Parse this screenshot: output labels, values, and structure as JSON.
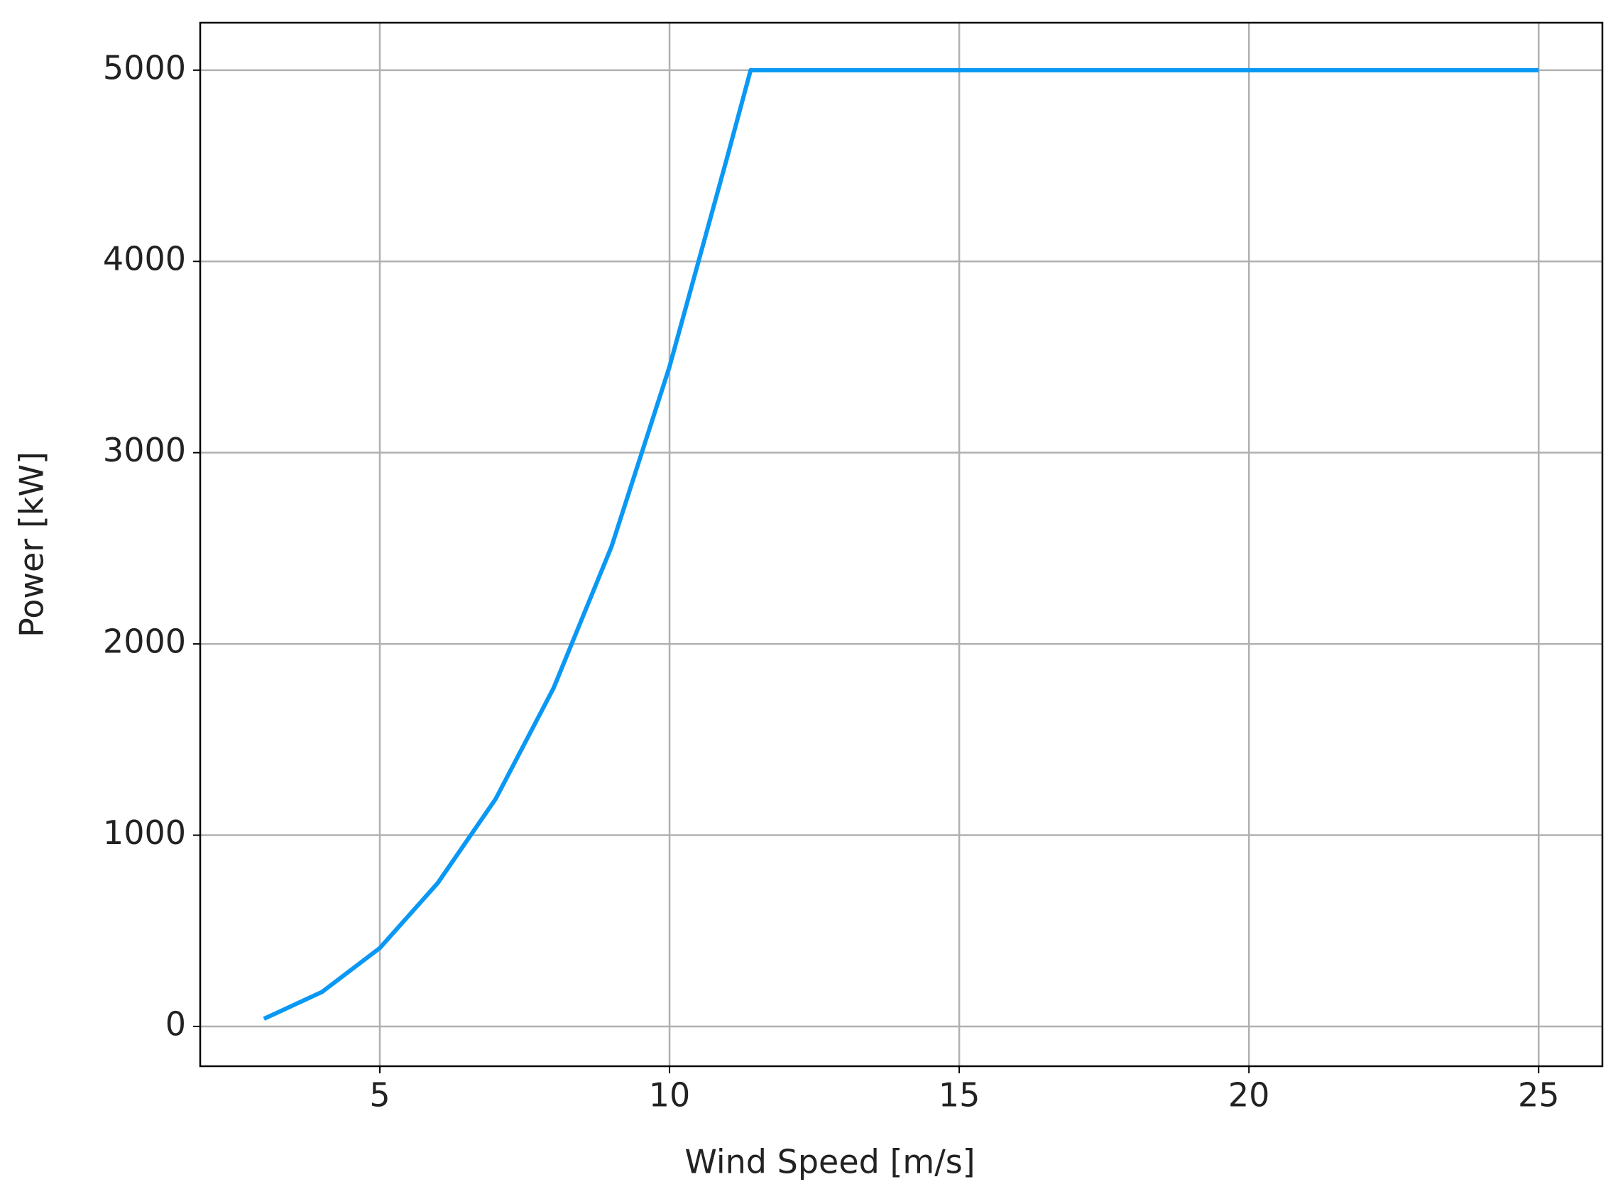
{
  "chart_data": {
    "type": "line",
    "xlabel": "Wind Speed [m/s]",
    "ylabel": "Power [kW]",
    "x": [
      3,
      4,
      5,
      6,
      7,
      8,
      9,
      10,
      11,
      11.4,
      12,
      13,
      14,
      15,
      16,
      17,
      18,
      19,
      20,
      21,
      22,
      23,
      24,
      25
    ],
    "series": [
      {
        "color": "#0a98f5",
        "values": [
          40,
          180,
          410,
          750,
          1190,
          1770,
          2510,
          3450,
          4550,
          5000,
          5000,
          5000,
          5000,
          5000,
          5000,
          5000,
          5000,
          5000,
          5000,
          5000,
          5000,
          5000,
          5000,
          5000
        ]
      }
    ],
    "xlim": [
      1.9,
      26.1
    ],
    "ylim": [
      -208,
      5248
    ],
    "xticks": [
      5,
      10,
      15,
      20,
      25
    ],
    "yticks": [
      0,
      1000,
      2000,
      3000,
      4000,
      5000
    ],
    "grid": true
  }
}
